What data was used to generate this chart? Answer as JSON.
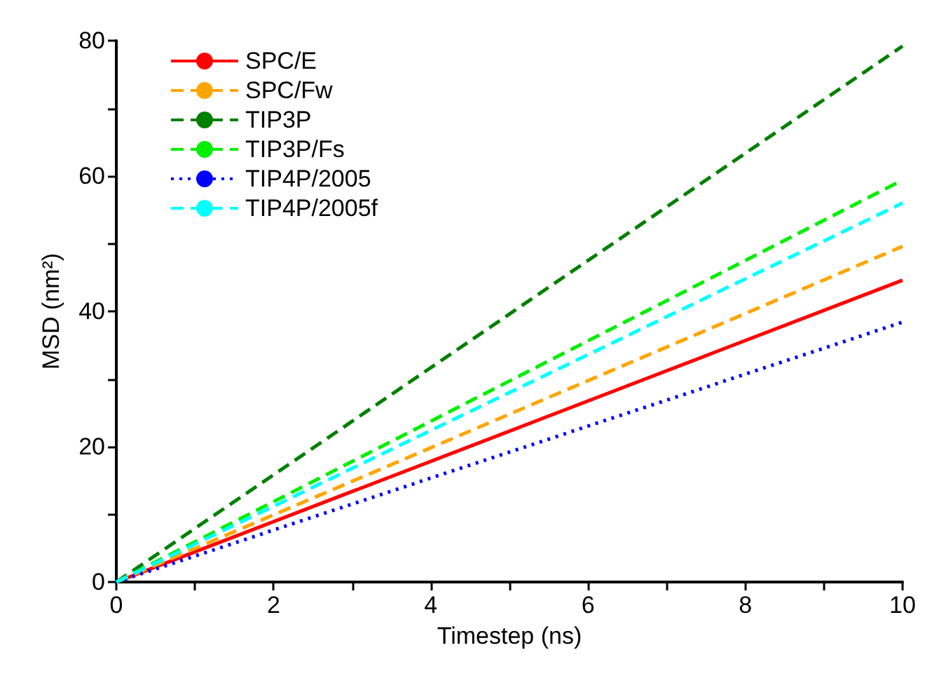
{
  "chart_data": {
    "type": "line",
    "xlabel": "Timestep (ns)",
    "ylabel": "MSD (nm²)",
    "x": [
      0,
      5,
      10
    ],
    "xlim": [
      0,
      10
    ],
    "xticks": [
      0,
      {
        "value": 1,
        "label": null
      },
      2,
      {
        "value": 3,
        "label": null
      },
      4,
      {
        "value": 5,
        "label": null
      },
      6,
      {
        "value": 7,
        "label": null
      },
      8,
      {
        "value": 9,
        "label": null
      },
      10
    ],
    "ylim": [
      0,
      80
    ],
    "yticks": [
      0,
      {
        "value": 10,
        "label": null
      },
      20,
      {
        "value": 30,
        "label": null
      },
      40,
      {
        "value": 50,
        "label": null
      },
      60,
      {
        "value": 70,
        "label": null
      },
      80
    ],
    "grid": false,
    "legend": "top left",
    "marker": "none",
    "series": [
      {
        "name": "SPC/E",
        "color": "#ff0000",
        "line_style": "solid",
        "values": [
          0,
          22.3,
          44.6
        ]
      },
      {
        "name": "SPC/Fw",
        "color": "#ffa500",
        "line_style": "dashed",
        "values": [
          0,
          24.8,
          49.6
        ]
      },
      {
        "name": "TIP3P",
        "color": "#008000",
        "line_style": "dashed",
        "values": [
          0,
          39.6,
          79.2
        ]
      },
      {
        "name": "TIP3P/Fs",
        "color": "#00ee00",
        "line_style": "dashed",
        "values": [
          0,
          29.7,
          59.4
        ]
      },
      {
        "name": "TIP4P/2005",
        "color": "#0000ff",
        "line_style": "dotted",
        "values": [
          0,
          19.2,
          38.4
        ]
      },
      {
        "name": "TIP4P/2005f",
        "color": "#00ffff",
        "line_style": "dashed",
        "values": [
          0,
          28,
          56
        ]
      }
    ]
  }
}
